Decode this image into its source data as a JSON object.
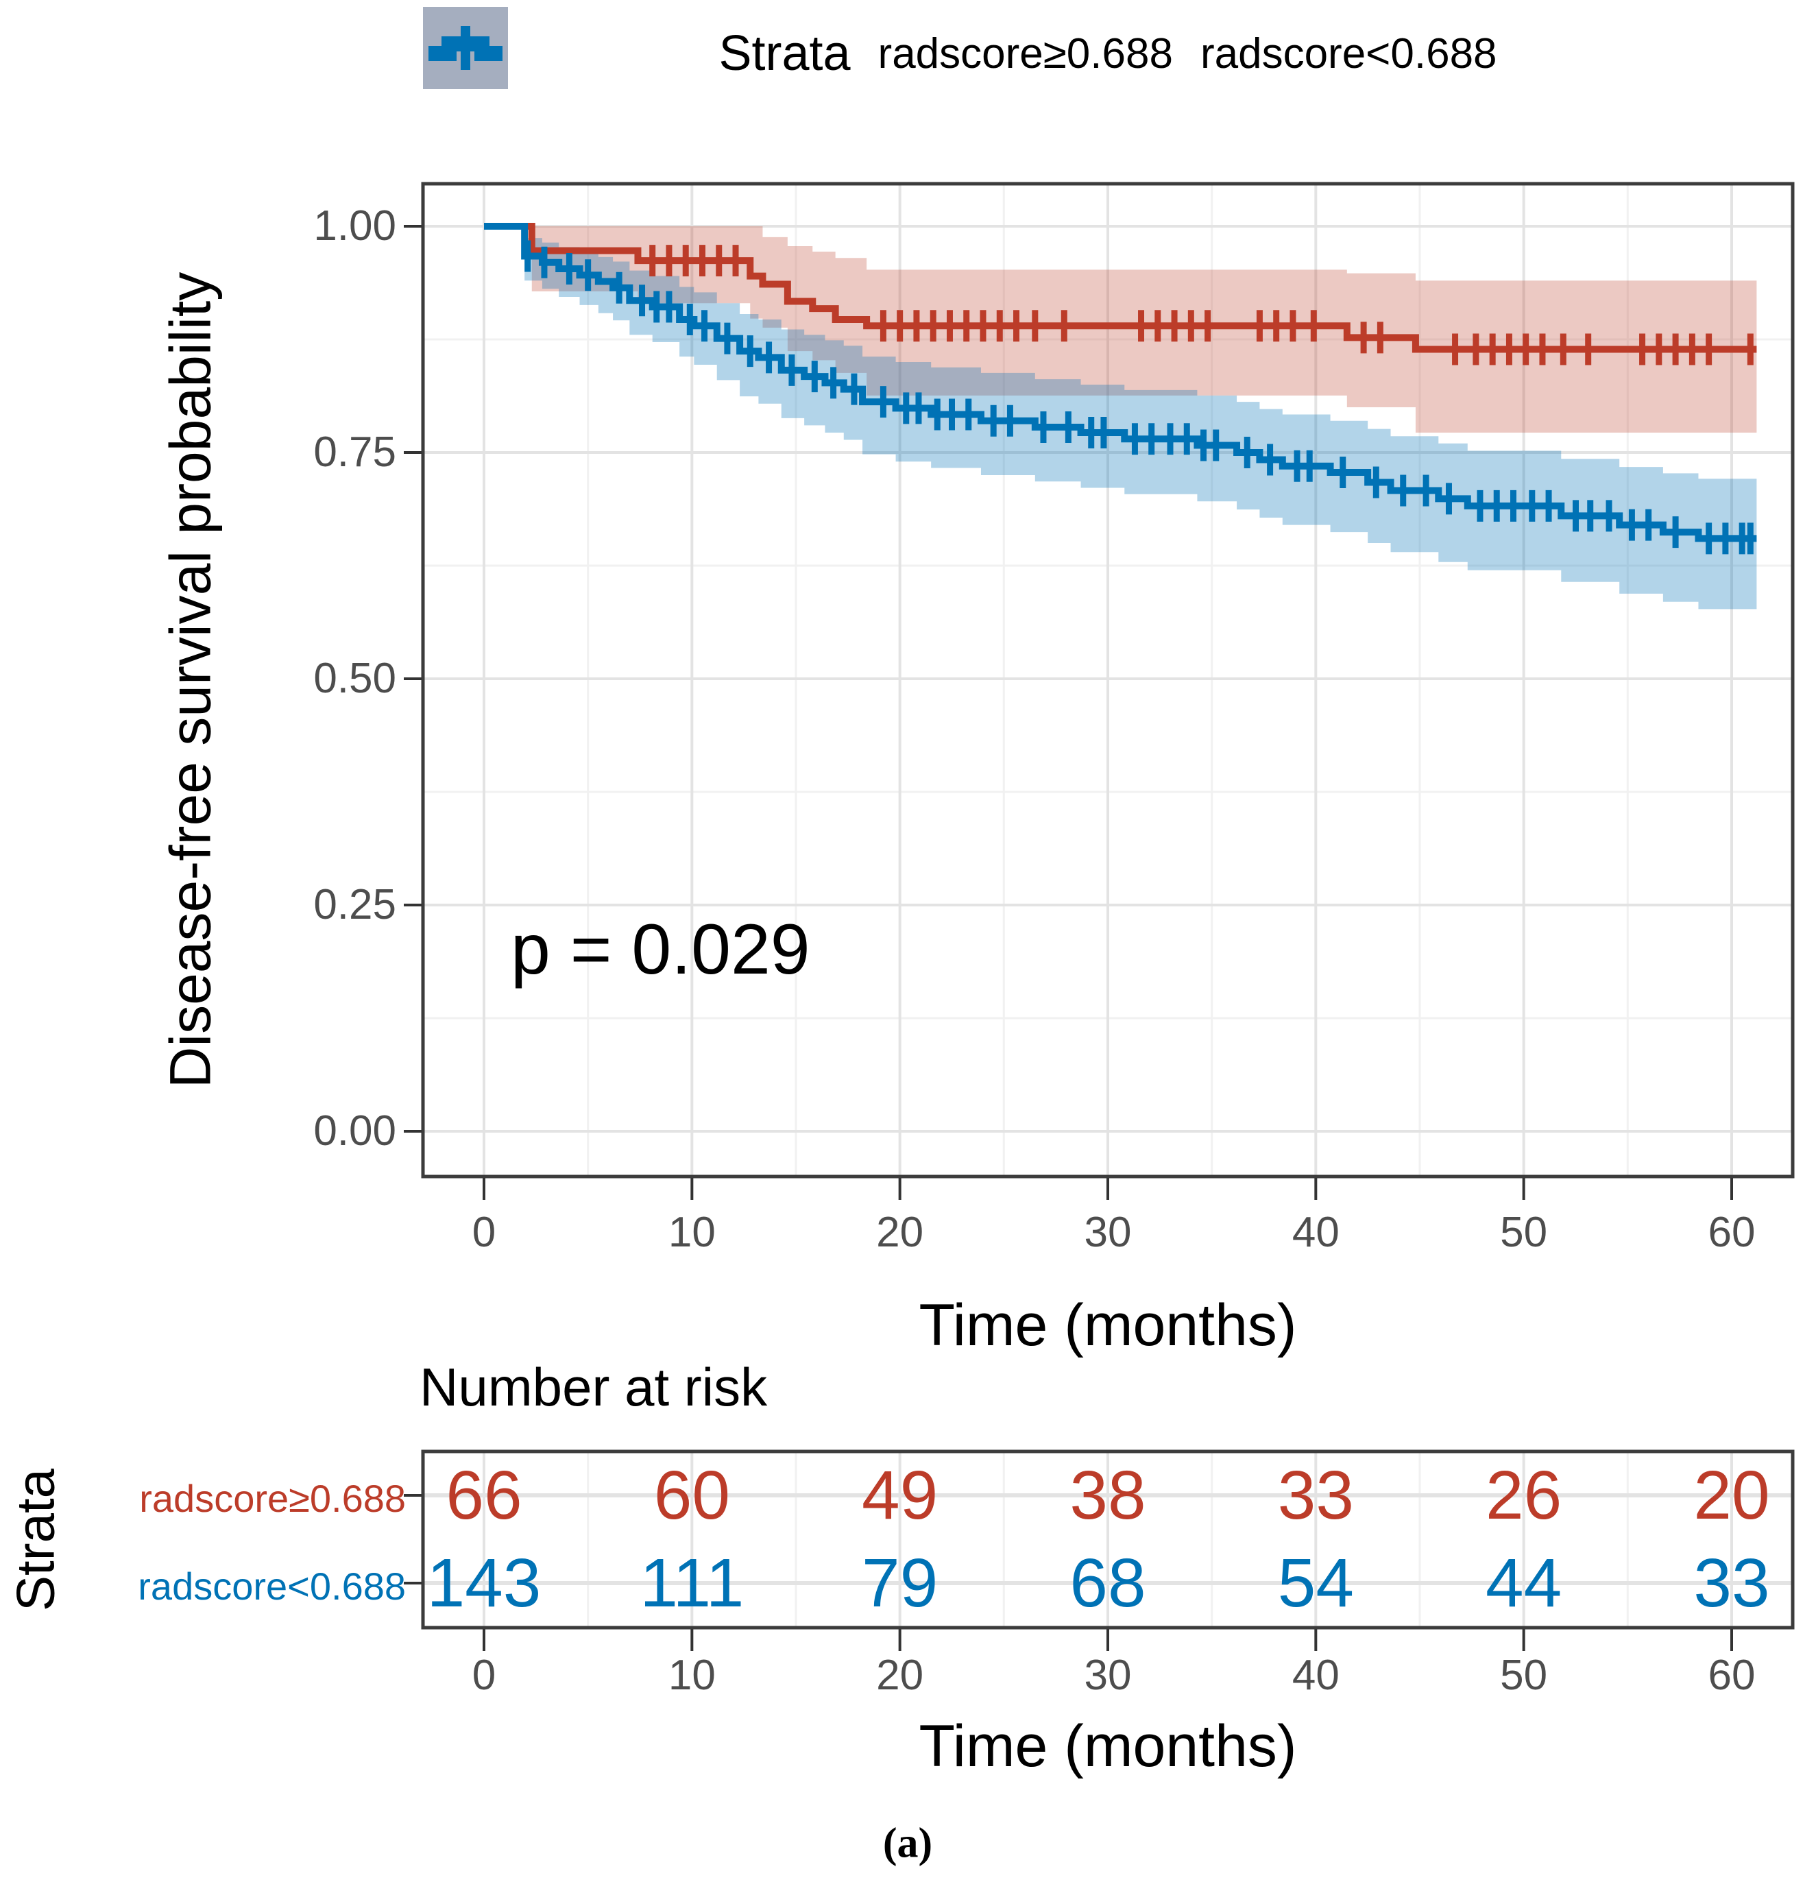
{
  "figure": {
    "caption": "(a)"
  },
  "legend": {
    "title": "Strata",
    "items": [
      {
        "label": "radscore≥0.688",
        "color": "#BC3C29",
        "fill": "rgba(188,60,41,0.28)"
      },
      {
        "label": "radscore<0.688",
        "color": "#0072B5",
        "fill": "rgba(0,114,181,0.30)"
      }
    ]
  },
  "y_axis": {
    "title": "Disease-free survival probability",
    "ticks": [
      {
        "label": "1.00",
        "v": 1.0
      },
      {
        "label": "0.75",
        "v": 0.75
      },
      {
        "label": "0.50",
        "v": 0.5
      },
      {
        "label": "0.25",
        "v": 0.25
      },
      {
        "label": "0.00",
        "v": 0.0
      }
    ]
  },
  "x_axis": {
    "title": "Time (months)",
    "ticks": [
      {
        "label": "0",
        "t": 0
      },
      {
        "label": "10",
        "t": 10
      },
      {
        "label": "20",
        "t": 20
      },
      {
        "label": "30",
        "t": 30
      },
      {
        "label": "40",
        "t": 40
      },
      {
        "label": "50",
        "t": 50
      },
      {
        "label": "60",
        "t": 60
      }
    ]
  },
  "annotations": {
    "p_value": "p = 0.029"
  },
  "risk_table": {
    "title": "Number at risk",
    "axis_label": "Strata",
    "x_title": "Time (months)",
    "x_ticks": [
      "0",
      "10",
      "20",
      "30",
      "40",
      "50",
      "60"
    ],
    "times": [
      0,
      10,
      20,
      30,
      40,
      50,
      60
    ],
    "rows": [
      {
        "label": "radscore≥0.688",
        "color": "#BC3C29",
        "counts": [
          66,
          60,
          49,
          38,
          33,
          26,
          20
        ]
      },
      {
        "label": "radscore<0.688",
        "color": "#0072B5",
        "counts": [
          143,
          111,
          79,
          68,
          54,
          44,
          33
        ]
      }
    ]
  },
  "chart_data": {
    "type": "line",
    "subtype": "kaplan-meier-step",
    "title": "",
    "xlabel": "Time (months)",
    "ylabel": "Disease-free survival probability",
    "xlim": [
      -3,
      63
    ],
    "ylim": [
      -0.05,
      1.05
    ],
    "grid": true,
    "legend_position": "top",
    "p_value": "p = 0.029",
    "series": [
      {
        "name": "radscore≥0.688",
        "n": 66,
        "color": "#BC3C29",
        "fill": "rgba(188,60,41,0.28)",
        "steps": [
          [
            0,
            1.0
          ],
          [
            2.3,
            0.973
          ],
          [
            7.4,
            0.962
          ],
          [
            12.8,
            0.945
          ],
          [
            13.4,
            0.936
          ],
          [
            14.6,
            0.917
          ],
          [
            15.8,
            0.909
          ],
          [
            16.9,
            0.897
          ],
          [
            18.4,
            0.89
          ],
          [
            41.5,
            0.877
          ],
          [
            44.8,
            0.864
          ],
          [
            61.2,
            0.864
          ]
        ],
        "censors": [
          8.1,
          8.9,
          9.7,
          10.5,
          11.3,
          12.1,
          19.2,
          20.0,
          20.8,
          21.6,
          22.4,
          23.2,
          24.0,
          24.8,
          25.6,
          26.5,
          27.9,
          31.6,
          32.4,
          33.2,
          34.0,
          34.8,
          37.3,
          38.1,
          38.9,
          39.9,
          42.3,
          43.1,
          46.7,
          47.7,
          48.5,
          49.3,
          50.1,
          50.9,
          51.9,
          53.1,
          55.7,
          56.5,
          57.3,
          58.1,
          58.9,
          60.9
        ],
        "ribbon": [
          [
            0,
            1,
            1
          ],
          [
            2.3,
            0.928,
            1
          ],
          [
            7.4,
            0.915,
            1
          ],
          [
            12.8,
            0.898,
            1
          ],
          [
            13.4,
            0.888,
            0.988
          ],
          [
            14.6,
            0.862,
            0.978
          ],
          [
            15.8,
            0.852,
            0.972
          ],
          [
            16.9,
            0.838,
            0.965
          ],
          [
            18.4,
            0.813,
            0.952
          ],
          [
            41.5,
            0.8,
            0.948
          ],
          [
            44.8,
            0.772,
            0.94
          ],
          [
            61.2,
            0.772,
            0.94
          ]
        ]
      },
      {
        "name": "radscore<0.688",
        "n": 143,
        "color": "#0072B5",
        "fill": "rgba(0,114,181,0.30)",
        "steps": [
          [
            0,
            1.0
          ],
          [
            1.95,
            0.967
          ],
          [
            2.8,
            0.96
          ],
          [
            3.6,
            0.953
          ],
          [
            4.6,
            0.946
          ],
          [
            5.5,
            0.939
          ],
          [
            6.2,
            0.932
          ],
          [
            7.0,
            0.918
          ],
          [
            8.1,
            0.911
          ],
          [
            9.4,
            0.897
          ],
          [
            10.1,
            0.89
          ],
          [
            11.2,
            0.876
          ],
          [
            12.3,
            0.862
          ],
          [
            13.2,
            0.855
          ],
          [
            14.3,
            0.841
          ],
          [
            15.4,
            0.834
          ],
          [
            16.4,
            0.827
          ],
          [
            17.3,
            0.82
          ],
          [
            18.2,
            0.806
          ],
          [
            19.8,
            0.799
          ],
          [
            21.5,
            0.792
          ],
          [
            23.9,
            0.785
          ],
          [
            26.5,
            0.778
          ],
          [
            28.7,
            0.772
          ],
          [
            30.8,
            0.765
          ],
          [
            34.3,
            0.758
          ],
          [
            36.2,
            0.75
          ],
          [
            37.3,
            0.742
          ],
          [
            38.4,
            0.735
          ],
          [
            40.7,
            0.728
          ],
          [
            42.5,
            0.717
          ],
          [
            43.6,
            0.708
          ],
          [
            45.9,
            0.699
          ],
          [
            47.3,
            0.691
          ],
          [
            51.8,
            0.68
          ],
          [
            54.6,
            0.67
          ],
          [
            56.7,
            0.662
          ],
          [
            58.4,
            0.655
          ],
          [
            61.2,
            0.655
          ]
        ],
        "censors": [
          2.1,
          2.9,
          4.1,
          5.0,
          6.5,
          7.6,
          8.3,
          8.9,
          9.9,
          10.6,
          11.7,
          12.8,
          13.7,
          14.8,
          15.9,
          16.8,
          17.8,
          19.2,
          20.3,
          20.9,
          21.8,
          22.5,
          23.3,
          24.5,
          25.3,
          26.9,
          28.1,
          29.2,
          29.8,
          31.3,
          32.1,
          33.0,
          33.8,
          34.6,
          35.2,
          36.7,
          37.8,
          39.1,
          39.7,
          41.3,
          42.9,
          44.2,
          45.3,
          46.4,
          47.9,
          48.7,
          49.5,
          50.4,
          51.2,
          52.5,
          53.2,
          54.1,
          55.2,
          56.0,
          57.3,
          58.9,
          59.7,
          60.5,
          60.9
        ],
        "ribbon": [
          [
            0,
            1,
            1
          ],
          [
            1.95,
            0.94,
            0.987
          ],
          [
            2.8,
            0.931,
            0.982
          ],
          [
            3.6,
            0.922,
            0.977
          ],
          [
            4.6,
            0.913,
            0.971
          ],
          [
            5.5,
            0.904,
            0.966
          ],
          [
            6.2,
            0.896,
            0.961
          ],
          [
            7.0,
            0.88,
            0.951
          ],
          [
            8.1,
            0.872,
            0.945
          ],
          [
            9.4,
            0.856,
            0.933
          ],
          [
            10.1,
            0.847,
            0.927
          ],
          [
            11.2,
            0.83,
            0.915
          ],
          [
            12.3,
            0.812,
            0.903
          ],
          [
            13.2,
            0.804,
            0.897
          ],
          [
            14.3,
            0.788,
            0.886
          ],
          [
            15.4,
            0.78,
            0.88
          ],
          [
            16.4,
            0.772,
            0.874
          ],
          [
            17.3,
            0.764,
            0.868
          ],
          [
            18.2,
            0.748,
            0.856
          ],
          [
            19.8,
            0.74,
            0.85
          ],
          [
            21.5,
            0.733,
            0.844
          ],
          [
            23.9,
            0.725,
            0.838
          ],
          [
            26.5,
            0.718,
            0.831
          ],
          [
            28.7,
            0.711,
            0.825
          ],
          [
            30.8,
            0.704,
            0.819
          ],
          [
            34.3,
            0.696,
            0.813
          ],
          [
            36.2,
            0.687,
            0.806
          ],
          [
            37.3,
            0.678,
            0.798
          ],
          [
            38.4,
            0.67,
            0.792
          ],
          [
            40.7,
            0.662,
            0.785
          ],
          [
            42.5,
            0.65,
            0.776
          ],
          [
            43.6,
            0.64,
            0.768
          ],
          [
            45.9,
            0.629,
            0.76
          ],
          [
            47.3,
            0.62,
            0.752
          ],
          [
            51.8,
            0.607,
            0.743
          ],
          [
            54.6,
            0.594,
            0.734
          ],
          [
            56.7,
            0.585,
            0.727
          ],
          [
            58.4,
            0.577,
            0.721
          ],
          [
            61.2,
            0.577,
            0.721
          ]
        ]
      }
    ]
  }
}
